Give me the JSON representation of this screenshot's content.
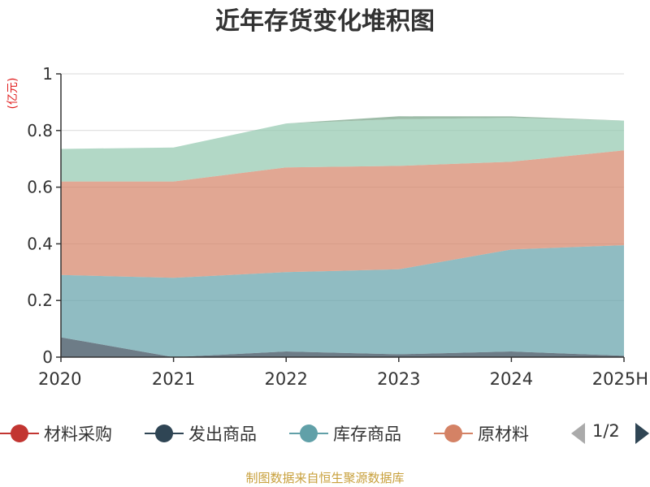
{
  "source_note": "制图数据来自恒生聚源数据库",
  "legend_page": "1/2",
  "chart_data": {
    "type": "area",
    "stacked": true,
    "title": "近年存货变化堆积图",
    "unit_label": "(亿元)",
    "categories": [
      "2020",
      "2021",
      "2022",
      "2023",
      "2024",
      "2025H"
    ],
    "y_ticks": [
      "0",
      "0.2",
      "0.4",
      "0.6",
      "0.8",
      "1"
    ],
    "ylim": [
      0,
      1
    ],
    "grid": true,
    "legend_position": "bottom",
    "series": [
      {
        "name": "材料采购",
        "color": "#c23531",
        "values": [
          0.0,
          0.0,
          0.0,
          0.0,
          0.0,
          0.0
        ]
      },
      {
        "name": "发出商品",
        "color": "#2f4554",
        "values": [
          0.07,
          0.0,
          0.02,
          0.01,
          0.02,
          0.005
        ]
      },
      {
        "name": "库存商品",
        "color": "#61a0a8",
        "values": [
          0.22,
          0.28,
          0.28,
          0.3,
          0.36,
          0.39
        ]
      },
      {
        "name": "原材料",
        "color": "#d48265",
        "values": [
          0.33,
          0.34,
          0.37,
          0.365,
          0.31,
          0.335
        ]
      },
      {
        "name": "",
        "color": "#91c7ae",
        "values": [
          0.115,
          0.12,
          0.155,
          0.165,
          0.155,
          0.105
        ]
      },
      {
        "name": "",
        "color": "#749f83",
        "values": [
          0.0,
          0.0,
          0.0,
          0.01,
          0.005,
          0.0
        ]
      }
    ]
  }
}
